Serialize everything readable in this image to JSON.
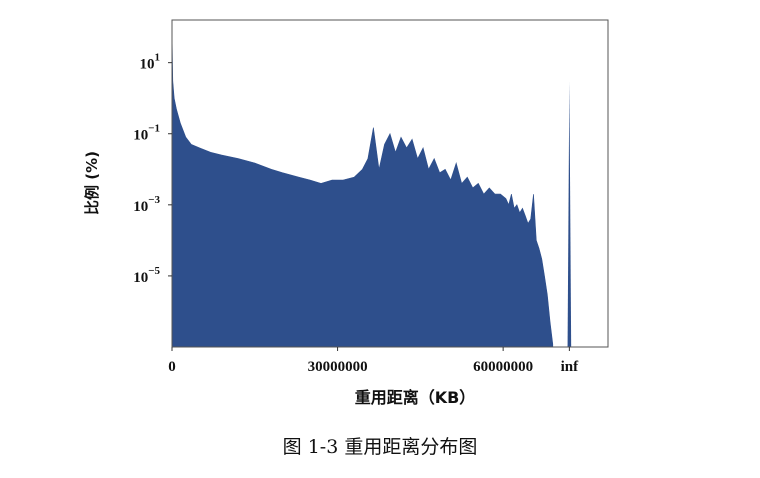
{
  "caption": "图 1-3  重用距离分布图",
  "chart_data": {
    "type": "area",
    "xlabel": "重用距离（KB）",
    "ylabel": "比例 (%)",
    "yscale": "log",
    "xlim": [
      0,
      79000000
    ],
    "ylim_exponent": [
      -7,
      2.2
    ],
    "ylim": [
      1e-07,
      158
    ],
    "fill_color": "#2e4f8c",
    "x_ticks": [
      {
        "value": 0,
        "label": "0"
      },
      {
        "value": 30000000,
        "label": "30000000"
      },
      {
        "value": 60000000,
        "label": "60000000"
      },
      {
        "value": 72000000,
        "label": "inf"
      }
    ],
    "y_ticks": [
      {
        "base": "10",
        "exp": "1",
        "value": 10
      },
      {
        "base": "10",
        "exp": "−1",
        "value": 0.1
      },
      {
        "base": "10",
        "exp": "−3",
        "value": 0.001
      },
      {
        "base": "10",
        "exp": "−5",
        "value": 1e-05
      }
    ],
    "series": [
      {
        "x": [
          0,
          150000,
          400000,
          800000,
          1500000,
          2500000,
          3500000,
          5000000,
          7000000,
          9000000,
          12000000,
          15000000,
          18000000,
          20000000,
          23000000,
          25000000,
          27000000,
          29000000,
          31000000,
          33000000,
          34500000,
          35500000,
          36500000,
          37500000,
          38500000,
          39500000,
          40500000,
          41500000,
          42500000,
          43500000,
          44500000,
          45500000,
          46500000,
          47500000,
          48500000,
          49500000,
          50500000,
          51500000,
          52500000,
          53500000,
          54500000,
          55500000,
          56500000,
          57500000,
          58500000,
          59500000,
          60500000,
          61000000,
          61500000,
          62000000,
          62500000,
          63000000,
          63500000,
          64000000,
          64500000,
          65000000,
          65500000,
          66000000,
          66500000,
          67000000,
          67500000,
          68000000,
          68500000,
          69000000
        ],
        "y": [
          80,
          3,
          1,
          0.5,
          0.2,
          0.08,
          0.05,
          0.04,
          0.03,
          0.025,
          0.02,
          0.015,
          0.01,
          0.008,
          0.006,
          0.005,
          0.004,
          0.005,
          0.005,
          0.006,
          0.01,
          0.02,
          0.15,
          0.01,
          0.05,
          0.1,
          0.03,
          0.08,
          0.04,
          0.07,
          0.02,
          0.04,
          0.01,
          0.02,
          0.008,
          0.01,
          0.005,
          0.015,
          0.004,
          0.006,
          0.003,
          0.004,
          0.002,
          0.003,
          0.002,
          0.002,
          0.0015,
          0.001,
          0.002,
          0.0008,
          0.001,
          0.0006,
          0.0008,
          0.0005,
          0.0003,
          0.0004,
          0.002,
          0.0001,
          6e-05,
          3e-05,
          1e-05,
          3e-06,
          5e-07,
          1.2e-07
        ]
      }
    ],
    "inf_spike": {
      "x": 72000000,
      "y": 3
    }
  }
}
